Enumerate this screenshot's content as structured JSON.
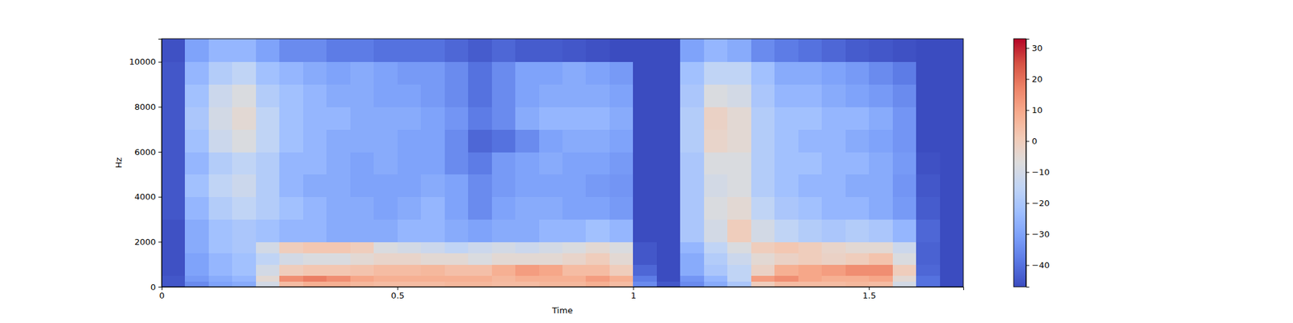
{
  "chart_data": {
    "type": "heatmap",
    "x_label": "Time",
    "y_label": "Hz",
    "xlim": [
      0,
      1.7
    ],
    "ylim": [
      0,
      11025
    ],
    "xticks": [
      0,
      0.5,
      1,
      1.5
    ],
    "yticks": [
      0,
      2000,
      4000,
      6000,
      8000,
      10000
    ],
    "x_edges": [
      0,
      0.05,
      0.1,
      0.15,
      0.2,
      0.25,
      0.3,
      0.35,
      0.4,
      0.45,
      0.5,
      0.55,
      0.6,
      0.65,
      0.7,
      0.75,
      0.8,
      0.85,
      0.9,
      0.95,
      1,
      1.05,
      1.1,
      1.15,
      1.2,
      1.25,
      1.3,
      1.35,
      1.4,
      1.45,
      1.5,
      1.55,
      1.6,
      1.65,
      1.7
    ],
    "y_edges": [
      0,
      250,
      500,
      1000,
      1500,
      2000,
      3000,
      4000,
      5000,
      6000,
      7000,
      8000,
      9000,
      10000,
      11025
    ],
    "z": [
      [
        -45,
        -35,
        -30,
        -28,
        -10,
        5,
        8,
        8,
        6,
        5,
        5,
        5,
        6,
        6,
        5,
        5,
        6,
        6,
        8,
        5,
        -35,
        -45,
        -35,
        -28,
        -20,
        0,
        5,
        5,
        5,
        6,
        5,
        -10,
        -40,
        -47
      ],
      [
        -45,
        -32,
        -28,
        -25,
        -5,
        15,
        18,
        15,
        10,
        8,
        8,
        8,
        8,
        8,
        6,
        8,
        8,
        8,
        12,
        8,
        -38,
        -47,
        -33,
        -25,
        -15,
        12,
        15,
        10,
        8,
        8,
        10,
        -5,
        -40,
        -47
      ],
      [
        -46,
        -30,
        -25,
        -22,
        -10,
        0,
        2,
        2,
        3,
        5,
        5,
        6,
        4,
        4,
        8,
        12,
        10,
        5,
        5,
        0,
        -42,
        -47,
        -28,
        -20,
        -15,
        -2,
        8,
        10,
        12,
        15,
        15,
        0,
        -42,
        -47
      ],
      [
        -46,
        -30,
        -25,
        -22,
        -15,
        -10,
        -8,
        -8,
        -5,
        -3,
        -3,
        -5,
        -5,
        -8,
        -5,
        -5,
        -5,
        -3,
        0,
        -5,
        -45,
        -47,
        -28,
        -18,
        -12,
        -5,
        -2,
        0,
        -2,
        0,
        3,
        -8,
        -43,
        -47
      ],
      [
        -46,
        -28,
        -22,
        -20,
        -10,
        0,
        2,
        2,
        0,
        -8,
        -10,
        -12,
        -15,
        -12,
        -10,
        -12,
        -10,
        -8,
        -5,
        -8,
        -45,
        -47,
        -25,
        -15,
        -8,
        0,
        2,
        0,
        -3,
        -5,
        -5,
        -12,
        -43,
        -47
      ],
      [
        -46,
        -28,
        -22,
        -20,
        -22,
        -25,
        -25,
        -28,
        -28,
        -28,
        -25,
        -25,
        -28,
        -30,
        -28,
        -28,
        -25,
        -25,
        -22,
        -25,
        -47,
        -47,
        -20,
        -10,
        0,
        -10,
        -15,
        -18,
        -20,
        -18,
        -20,
        -25,
        -42,
        -47
      ],
      [
        -45,
        -25,
        -18,
        -15,
        -18,
        -22,
        -25,
        -28,
        -28,
        -30,
        -28,
        -25,
        -30,
        -35,
        -30,
        -28,
        -28,
        -30,
        -30,
        -32,
        -47,
        -47,
        -20,
        -8,
        -5,
        -15,
        -20,
        -22,
        -25,
        -25,
        -28,
        -32,
        -44,
        -47
      ],
      [
        -45,
        -22,
        -15,
        -12,
        -18,
        -25,
        -28,
        -28,
        -30,
        -30,
        -30,
        -28,
        -30,
        -35,
        -32,
        -30,
        -30,
        -30,
        -32,
        -33,
        -47,
        -47,
        -20,
        -10,
        -8,
        -18,
        -22,
        -25,
        -25,
        -28,
        -28,
        -33,
        -45,
        -47
      ],
      [
        -45,
        -25,
        -18,
        -15,
        -18,
        -25,
        -25,
        -28,
        -30,
        -28,
        -30,
        -30,
        -35,
        -38,
        -32,
        -30,
        -28,
        -30,
        -30,
        -32,
        -47,
        -47,
        -20,
        -8,
        -8,
        -18,
        -22,
        -22,
        -25,
        -25,
        -28,
        -32,
        -46,
        -47
      ],
      [
        -45,
        -22,
        -12,
        -8,
        -15,
        -22,
        -25,
        -28,
        -28,
        -28,
        -30,
        -30,
        -35,
        -42,
        -40,
        -35,
        -30,
        -28,
        -28,
        -30,
        -47,
        -47,
        -18,
        -3,
        -5,
        -18,
        -22,
        -25,
        -25,
        -28,
        -30,
        -33,
        -47,
        -47
      ],
      [
        -45,
        -20,
        -10,
        -5,
        -15,
        -22,
        -25,
        -25,
        -28,
        -28,
        -28,
        -30,
        -33,
        -38,
        -35,
        -28,
        -25,
        -25,
        -25,
        -28,
        -47,
        -47,
        -18,
        -2,
        -5,
        -18,
        -22,
        -22,
        -25,
        -25,
        -28,
        -33,
        -47,
        -47
      ],
      [
        -45,
        -22,
        -12,
        -8,
        -18,
        -22,
        -25,
        -28,
        -28,
        -30,
        -30,
        -32,
        -35,
        -40,
        -35,
        -30,
        -28,
        -28,
        -28,
        -30,
        -47,
        -47,
        -20,
        -8,
        -10,
        -20,
        -25,
        -25,
        -28,
        -30,
        -32,
        -35,
        -47,
        -47
      ],
      [
        -45,
        -25,
        -18,
        -15,
        -22,
        -25,
        -28,
        -30,
        -28,
        -30,
        -32,
        -32,
        -35,
        -40,
        -35,
        -30,
        -30,
        -28,
        -30,
        -32,
        -47,
        -47,
        -22,
        -15,
        -15,
        -22,
        -28,
        -28,
        -30,
        -32,
        -35,
        -38,
        -47,
        -47
      ],
      [
        -46,
        -30,
        -25,
        -25,
        -30,
        -35,
        -35,
        -38,
        -38,
        -40,
        -40,
        -40,
        -42,
        -44,
        -42,
        -44,
        -44,
        -45,
        -46,
        -47,
        -47,
        -47,
        -30,
        -25,
        -28,
        -35,
        -38,
        -40,
        -42,
        -44,
        -45,
        -46,
        -47,
        -47
      ]
    ],
    "colorbar": {
      "range": [
        -47,
        33
      ],
      "ticks": [
        {
          "value": -40,
          "label": "−40"
        },
        {
          "value": -30,
          "label": "−30"
        },
        {
          "value": -20,
          "label": "−20"
        },
        {
          "value": -10,
          "label": "−10"
        },
        0,
        10,
        20,
        30
      ]
    }
  }
}
